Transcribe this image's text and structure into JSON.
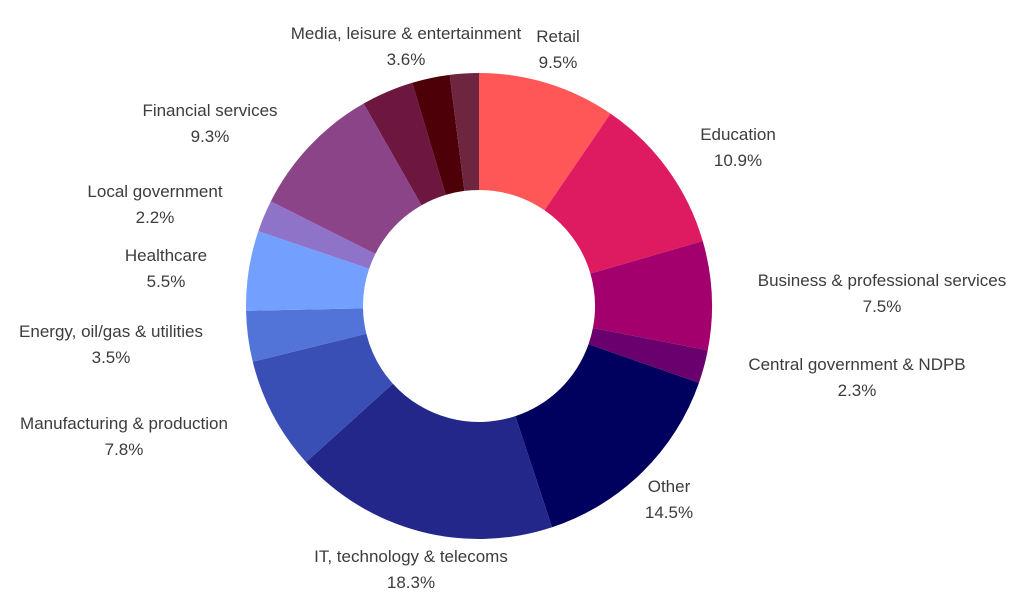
{
  "chart_data": {
    "type": "pie",
    "title": "",
    "variant": "donut",
    "start": "top, clockwise",
    "slices": [
      {
        "label": "Retail",
        "value": 9.5,
        "display": "9.5%",
        "color": "#ff5757"
      },
      {
        "label": "Education",
        "value": 10.9,
        "display": "10.9%",
        "color": "#de1a60"
      },
      {
        "label": "Business & professional services",
        "value": 7.5,
        "display": "7.5%",
        "color": "#a3006e"
      },
      {
        "label": "Central government & NDPB",
        "value": 2.3,
        "display": "2.3%",
        "color": "#6a006d"
      },
      {
        "label": "Other",
        "value": 14.5,
        "display": "14.5%",
        "color": "#00005e"
      },
      {
        "label": "IT, technology & telecoms",
        "value": 18.3,
        "display": "18.3%",
        "color": "#24278a"
      },
      {
        "label": "Manufacturing & production",
        "value": 7.8,
        "display": "7.8%",
        "color": "#3a4fb5"
      },
      {
        "label": "Energy, oil/gas & utilities",
        "value": 3.5,
        "display": "3.5%",
        "color": "#5274d8"
      },
      {
        "label": "Healthcare",
        "value": 5.5,
        "display": "5.5%",
        "color": "#73a0ff"
      },
      {
        "label": "Local government",
        "value": 2.2,
        "display": "2.2%",
        "color": "#8e73c9"
      },
      {
        "label": "Financial services",
        "value": 9.3,
        "display": "9.3%",
        "color": "#8b4487"
      },
      {
        "label": "Media, leisure & entertainment",
        "value": 3.6,
        "display": "3.6%",
        "color": "#6d1640"
      },
      {
        "label": "",
        "value": 2.6,
        "display": "",
        "color": "#4d0007"
      },
      {
        "label": "",
        "value": 2.0,
        "display": "",
        "color": "#6e2640"
      }
    ]
  }
}
